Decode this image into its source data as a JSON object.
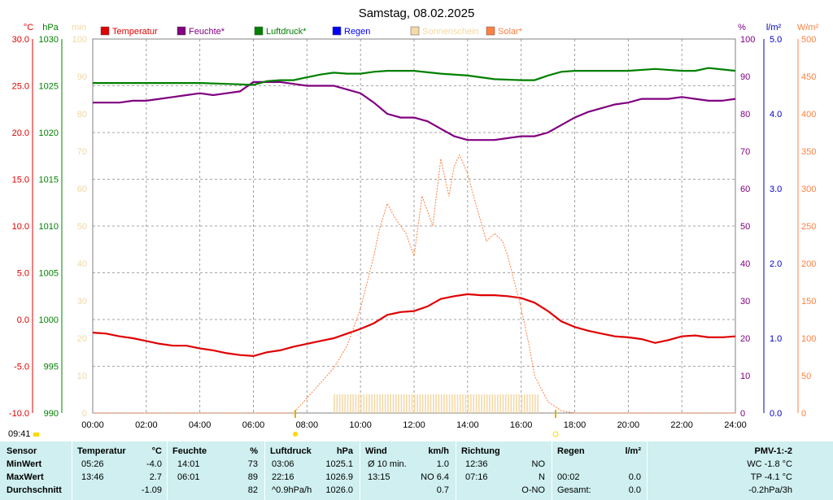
{
  "chart_data": {
    "type": "line",
    "title": "Samstag, 08.02.2025",
    "x_ticks": [
      "00:00",
      "02:00",
      "04:00",
      "06:00",
      "08:00",
      "10:00",
      "12:00",
      "14:00",
      "16:00",
      "18:00",
      "20:00",
      "22:00",
      "24:00"
    ],
    "axes": {
      "temperature": {
        "unit": "°C",
        "range": [
          -10,
          30
        ],
        "ticks": [
          "30.0",
          "25.0",
          "20.0",
          "15.0",
          "10.0",
          "5.0",
          "0.0",
          "-5.0",
          "-10.0"
        ],
        "color": "#e00000"
      },
      "pressure": {
        "unit": "hPa",
        "range": [
          990,
          1030
        ],
        "ticks": [
          "1030",
          "1025",
          "1020",
          "1015",
          "1010",
          "1005",
          "1000",
          "995",
          "990"
        ],
        "color": "#008000"
      },
      "sunshine_min": {
        "unit": "min",
        "range": [
          0,
          100
        ],
        "ticks": [
          "100",
          "90",
          "80",
          "70",
          "60",
          "50",
          "40",
          "30",
          "20",
          "10",
          "0"
        ],
        "color": "#f2d7a0"
      },
      "humidity": {
        "unit": "%",
        "range": [
          0,
          100
        ],
        "ticks": [
          "100",
          "90",
          "80",
          "70",
          "60",
          "50",
          "40",
          "30",
          "20",
          "10",
          "0"
        ],
        "color": "#800080"
      },
      "rain": {
        "unit": "l/m²",
        "range": [
          0,
          5
        ],
        "ticks": [
          "5.0",
          "4.0",
          "3.0",
          "2.0",
          "1.0",
          "0.0"
        ],
        "color": "#0000cc"
      },
      "solar": {
        "unit": "W/m²",
        "range": [
          0,
          500
        ],
        "ticks": [
          "500",
          "450",
          "400",
          "350",
          "300",
          "250",
          "200",
          "150",
          "100",
          "50",
          "0"
        ],
        "color": "#ff8040"
      }
    },
    "legend": [
      {
        "name": "Temperatur",
        "color": "#e00000"
      },
      {
        "name": "Feuchte*",
        "color": "#800080"
      },
      {
        "name": "Luftdruck*",
        "color": "#008000"
      },
      {
        "name": "Regen",
        "color": "#0000ff"
      },
      {
        "name": "Sonnenschein",
        "color": "#f5d9a8"
      },
      {
        "name": "Solar*",
        "color": "#ff8040"
      }
    ],
    "series": [
      {
        "name": "Temperatur",
        "axis": "temperature",
        "color": "#e00000",
        "x": [
          0,
          0.5,
          1,
          1.5,
          2,
          2.5,
          3,
          3.5,
          4,
          4.5,
          5,
          5.5,
          6,
          6.5,
          7,
          7.5,
          8,
          8.5,
          9,
          9.5,
          10,
          10.5,
          11,
          11.5,
          12,
          12.5,
          13,
          13.5,
          14,
          14.5,
          15,
          15.5,
          16,
          16.5,
          17,
          17.5,
          18,
          18.5,
          19,
          19.5,
          20,
          20.5,
          21,
          21.5,
          22,
          22.5,
          23,
          23.5,
          24
        ],
        "values": [
          -1.4,
          -1.5,
          -1.8,
          -2.0,
          -2.3,
          -2.6,
          -2.8,
          -2.8,
          -3.1,
          -3.3,
          -3.6,
          -3.8,
          -3.9,
          -3.5,
          -3.3,
          -2.9,
          -2.6,
          -2.3,
          -2.0,
          -1.5,
          -1.0,
          -0.4,
          0.5,
          0.8,
          0.9,
          1.4,
          2.2,
          2.5,
          2.7,
          2.6,
          2.6,
          2.5,
          2.3,
          1.8,
          0.9,
          -0.2,
          -0.8,
          -1.2,
          -1.5,
          -1.8,
          -1.9,
          -2.1,
          -2.5,
          -2.2,
          -1.8,
          -1.7,
          -1.9,
          -1.9,
          -1.8
        ]
      },
      {
        "name": "Feuchte*",
        "axis": "humidity",
        "color": "#800080",
        "x": [
          0,
          0.5,
          1,
          1.5,
          2,
          2.5,
          3,
          3.5,
          4,
          4.5,
          5,
          5.5,
          6,
          6.5,
          7,
          7.5,
          8,
          8.5,
          9,
          9.5,
          10,
          10.5,
          11,
          11.5,
          12,
          12.5,
          13,
          13.5,
          14,
          14.5,
          15,
          15.5,
          16,
          16.5,
          17,
          17.5,
          18,
          18.5,
          19,
          19.5,
          20,
          20.5,
          21,
          21.5,
          22,
          22.5,
          23,
          23.5,
          24
        ],
        "values": [
          83,
          83,
          83,
          83.5,
          83.5,
          84,
          84.5,
          85,
          85.5,
          85,
          85.5,
          86,
          88.5,
          88.5,
          88.5,
          88,
          87.5,
          87.5,
          87.5,
          86.5,
          85.5,
          83,
          80,
          79,
          79,
          78,
          76,
          74,
          73,
          73,
          73,
          73.5,
          74,
          74,
          75,
          77,
          79,
          80.5,
          81.5,
          82.5,
          83,
          84,
          84,
          84,
          84.5,
          84,
          83.5,
          83.5,
          84
        ]
      },
      {
        "name": "Luftdruck*",
        "axis": "pressure",
        "color": "#008000",
        "x": [
          0,
          1,
          2,
          3,
          4,
          5,
          6,
          6.5,
          7,
          7.5,
          8,
          8.5,
          9,
          9.5,
          10,
          10.5,
          11,
          12,
          13,
          14,
          15,
          16,
          16.5,
          17,
          17.5,
          18,
          19,
          20,
          21,
          22,
          22.5,
          23,
          24
        ],
        "values": [
          1025.3,
          1025.3,
          1025.3,
          1025.3,
          1025.3,
          1025.2,
          1025.1,
          1025.5,
          1025.6,
          1025.6,
          1025.9,
          1026.2,
          1026.4,
          1026.3,
          1026.3,
          1026.5,
          1026.6,
          1026.6,
          1026.3,
          1026.1,
          1025.7,
          1025.6,
          1025.6,
          1026.1,
          1026.5,
          1026.6,
          1026.6,
          1026.6,
          1026.8,
          1026.6,
          1026.6,
          1026.9,
          1026.6
        ]
      },
      {
        "name": "Solar*",
        "axis": "solar",
        "color": "#ff8040",
        "x": [
          0,
          7.5,
          8,
          8.5,
          9,
          9.5,
          10,
          10.5,
          10.7,
          11,
          11.3,
          11.7,
          12,
          12.3,
          12.7,
          13,
          13.3,
          13.5,
          13.7,
          14,
          14.3,
          14.7,
          15,
          15.3,
          15.5,
          16,
          16.3,
          16.5,
          17,
          17.5,
          18,
          24
        ],
        "values": [
          0,
          0,
          20,
          40,
          60,
          90,
          140,
          210,
          245,
          280,
          260,
          240,
          210,
          290,
          250,
          340,
          290,
          330,
          345,
          320,
          280,
          230,
          240,
          230,
          210,
          140,
          90,
          50,
          15,
          3,
          0,
          0
        ]
      },
      {
        "name": "Sonnenschein",
        "axis": "sunshine_min",
        "color": "#f5d9a8",
        "type": "bar",
        "x_range": [
          9.0,
          16.6
        ],
        "value": 5
      }
    ],
    "grid": true
  },
  "stats": {
    "time": "09:41",
    "headers": [
      "Sensor",
      "Temperatur",
      "°C",
      "Feuchte",
      "%",
      "Luftdruck",
      "hPa",
      "Wind",
      "km/h",
      "Richtung",
      "Regen",
      "l/m²",
      "PMV-1:-2"
    ],
    "rows": [
      {
        "label": "MinWert",
        "t_time": "05:26",
        "t_val": "-4.0",
        "h_time": "14:01",
        "h_val": "73",
        "p_time": "03:06",
        "p_val": "1025.1",
        "w_label": "Ø 10 min.",
        "w_val": "1.0",
        "d_time": "12:36",
        "d_val": "NO",
        "r_time": "",
        "r_val": "",
        "pmv": "WC -1.8 °C"
      },
      {
        "label": "MaxWert",
        "t_time": "13:46",
        "t_val": "2.7",
        "h_time": "06:01",
        "h_val": "89",
        "p_time": "22:16",
        "p_val": "1026.9",
        "w_label": "13:15",
        "w_val": "NO 6.4",
        "d_time": "07:16",
        "d_val": "N",
        "r_time": "00:02",
        "r_val": "0.0",
        "pmv": "TP -4.1 °C"
      },
      {
        "label": "Durchschnitt",
        "t_time": "",
        "t_val": "-1.09",
        "h_time": "",
        "h_val": "82",
        "p_time": "^0.9hPa/h",
        "p_val": "1026.0",
        "w_label": "",
        "w_val": "0.7",
        "d_time": "",
        "d_val": "O-NO",
        "r_time": "Gesamt:",
        "r_val": "0.0",
        "pmv": "-0.2hPa/3h"
      }
    ]
  }
}
